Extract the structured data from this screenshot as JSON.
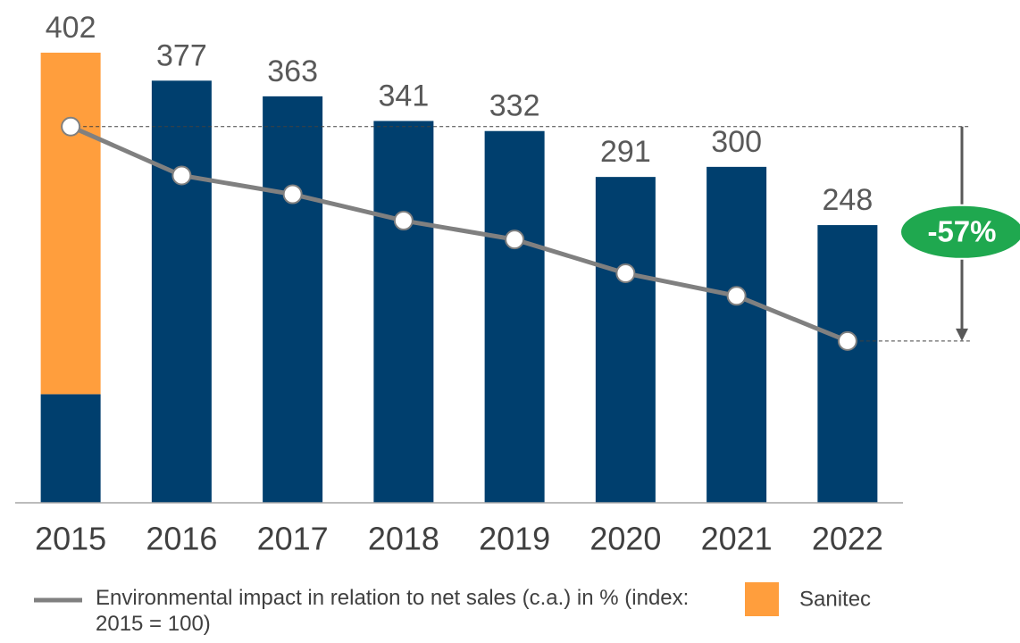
{
  "chart_data": {
    "type": "bar",
    "categories": [
      "2015",
      "2016",
      "2017",
      "2018",
      "2019",
      "2020",
      "2021",
      "2022"
    ],
    "totals": [
      402,
      377,
      363,
      341,
      332,
      291,
      300,
      248
    ],
    "series": [
      {
        "color": "#003f6e",
        "values": [
          97,
          377,
          363,
          341,
          332,
          291,
          300,
          248
        ]
      },
      {
        "name": "Sanitec",
        "color": "#ff9e3d",
        "values": [
          305,
          null,
          null,
          null,
          null,
          null,
          null,
          null
        ]
      },
      {
        "name": "Environmental impact in relation to net sales (c.a.) in % (index: 2015 = 100)",
        "type": "line",
        "axis": "y2",
        "color": "#808080",
        "values": [
          100,
          87,
          82,
          75,
          70,
          61,
          55,
          43
        ]
      }
    ],
    "ylim": [
      0,
      420
    ],
    "y2lim": [
      0,
      125
    ],
    "annotation": "-57%",
    "annotation_color": "#1fa84f"
  }
}
